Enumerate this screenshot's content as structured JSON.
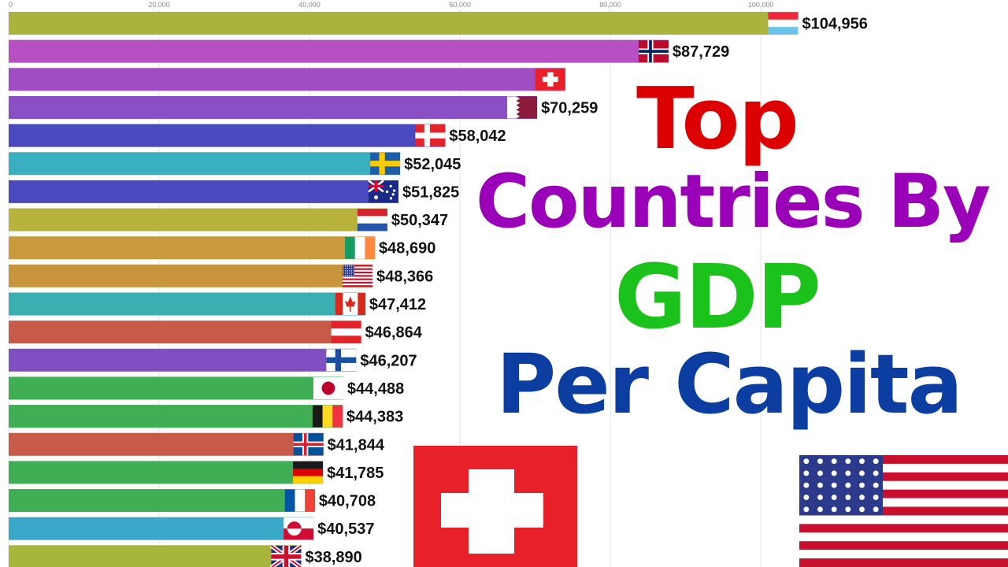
{
  "title": {
    "line1": "Top",
    "line2": "Countries By",
    "line3": "GDP",
    "line4": "Per Capita",
    "colors": [
      "#dd0000",
      "#9a00b8",
      "#1cc21c",
      "#0b3ea0"
    ]
  },
  "chart_data": {
    "type": "bar",
    "orientation": "horizontal",
    "xlim": [
      0,
      107000
    ],
    "x_ticks": [
      0,
      20000,
      40000,
      60000,
      80000,
      100000
    ],
    "x_tick_labels": [
      "0",
      "20,000",
      "40,000",
      "60,000",
      "80,000",
      "100,000"
    ],
    "grid": true,
    "bars": [
      {
        "flag": "luxembourg-flag",
        "value": 104956,
        "label": "$104,956",
        "color": "#aab33c"
      },
      {
        "flag": "norway-flag",
        "value": 87729,
        "label": "$87,729",
        "color": "#b84fc2"
      },
      {
        "flag": "switzerland-flag",
        "value": 74000,
        "label": "",
        "color": "#a04cc2"
      },
      {
        "flag": "qatar-flag",
        "value": 70259,
        "label": "$70,259",
        "color": "#8a4fc4"
      },
      {
        "flag": "denmark-flag",
        "value": 58042,
        "label": "$58,042",
        "color": "#4a4abe"
      },
      {
        "flag": "sweden-flag",
        "value": 52045,
        "label": "$52,045",
        "color": "#3aafc0"
      },
      {
        "flag": "australia-flag",
        "value": 51825,
        "label": "$51,825",
        "color": "#4a4abe"
      },
      {
        "flag": "netherlands-flag",
        "value": 50347,
        "label": "$50,347",
        "color": "#b7b33c"
      },
      {
        "flag": "ireland-flag",
        "value": 48690,
        "label": "$48,690",
        "color": "#c89a3c"
      },
      {
        "flag": "usa-flag",
        "value": 48366,
        "label": "$48,366",
        "color": "#c8943c"
      },
      {
        "flag": "canada-flag",
        "value": 47412,
        "label": "$47,412",
        "color": "#3aafb2"
      },
      {
        "flag": "austria-flag",
        "value": 46864,
        "label": "$46,864",
        "color": "#c85a4a"
      },
      {
        "flag": "finland-flag",
        "value": 46207,
        "label": "$46,207",
        "color": "#8050c2"
      },
      {
        "flag": "japan-flag",
        "value": 44488,
        "label": "$44,488",
        "color": "#3fae55"
      },
      {
        "flag": "belgium-flag",
        "value": 44383,
        "label": "$44,383",
        "color": "#3fae55"
      },
      {
        "flag": "iceland-flag",
        "value": 41844,
        "label": "$41,844",
        "color": "#c85a4a"
      },
      {
        "flag": "germany-flag",
        "value": 41785,
        "label": "$41,785",
        "color": "#3fae55"
      },
      {
        "flag": "france-flag",
        "value": 40708,
        "label": "$40,708",
        "color": "#3fae55"
      },
      {
        "flag": "greenland-flag",
        "value": 40537,
        "label": "$40,537",
        "color": "#3aa8c8"
      },
      {
        "flag": "uk-flag",
        "value": 38890,
        "label": "$38,890",
        "color": "#a8b53c"
      }
    ]
  },
  "overlay_flags": [
    "switzerland-flag",
    "usa-flag"
  ]
}
